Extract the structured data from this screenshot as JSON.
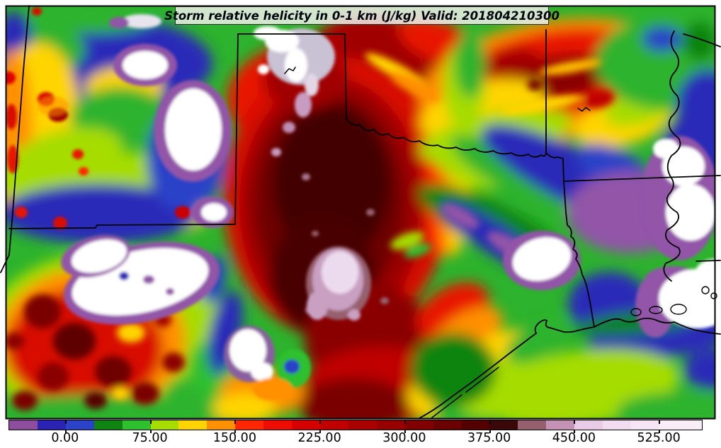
{
  "chart_data": {
    "type": "heatmap",
    "title": "Storm relative helicity in 0-1 km (J/kg) Valid: 201804210300",
    "variable": "Storm relative helicity in 0-1 km",
    "units": "J/kg",
    "valid": "201804210300",
    "colorbar": {
      "vmin": -50,
      "vmax": 562.5,
      "level_step": 25,
      "colors": [
        "#8f4d9e",
        "#2a23b4",
        "#2b43c8",
        "#108410",
        "#2fc02f",
        "#a6dc00",
        "#ffd400",
        "#ff9000",
        "#ff2600",
        "#ee0d00",
        "#d60000",
        "#c00000",
        "#ab0000",
        "#960000",
        "#810000",
        "#6b0000",
        "#550000",
        "#3a0808",
        "#97606e",
        "#c492b4",
        "#e9cbe6",
        "#f2dcf0",
        "#f6e5f5",
        "#f9eef8"
      ],
      "tick_values": [
        0,
        75,
        150,
        225,
        300,
        375,
        450,
        525
      ],
      "tick_labels": [
        "0.00",
        "75.00",
        "150.00",
        "225.00",
        "300.00",
        "375.00",
        "450.00",
        "525.00"
      ]
    }
  }
}
